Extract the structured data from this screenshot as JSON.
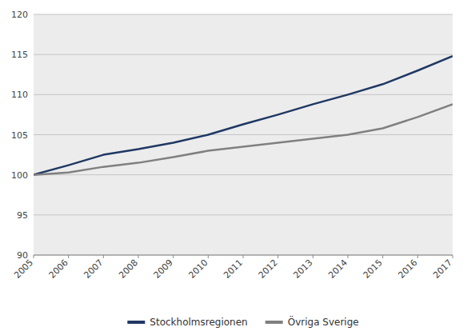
{
  "chart_data": {
    "type": "line",
    "categories": [
      "2005",
      "2006",
      "2007",
      "2008",
      "2009",
      "2010",
      "2011",
      "2012",
      "2013",
      "2014",
      "2015",
      "2016",
      "2017"
    ],
    "series": [
      {
        "name": "Stockholmsregionen",
        "color": "#1F3864",
        "values": [
          100.0,
          101.2,
          102.5,
          103.2,
          104.0,
          105.0,
          106.3,
          107.5,
          108.8,
          110.0,
          111.3,
          113.0,
          114.8
        ]
      },
      {
        "name": "Övriga Sverige",
        "color": "#808080",
        "values": [
          100.0,
          100.3,
          101.0,
          101.5,
          102.2,
          103.0,
          103.5,
          104.0,
          104.5,
          105.0,
          105.8,
          107.2,
          108.8
        ]
      }
    ],
    "ylim": [
      90,
      120
    ],
    "yticks": [
      90,
      95,
      100,
      105,
      110,
      115,
      120
    ],
    "grid": true,
    "legend": "bottom"
  }
}
